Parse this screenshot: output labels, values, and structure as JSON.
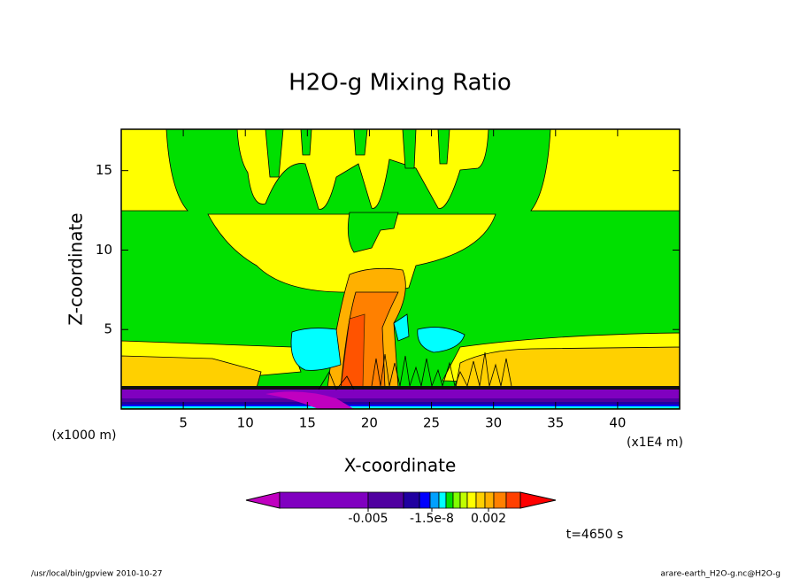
{
  "chart_data": {
    "type": "contour",
    "title": "H2O-g Mixing Ratio",
    "x_label": "X-coordinate",
    "y_label": "Z-coordinate",
    "x_unit": "(x1E4 m)",
    "y_unit": "(x1000 m)",
    "xlim": [
      0,
      45
    ],
    "ylim": [
      0,
      17.6
    ],
    "xticks": [
      5,
      10,
      15,
      20,
      25,
      30,
      35,
      40
    ],
    "yticks": [
      5,
      10,
      15
    ],
    "colorbar": {
      "colors": [
        "#c000c0",
        "#8000c0",
        "#5000a0",
        "#2000a0",
        "#0000ff",
        "#00a0ff",
        "#00ffff",
        "#00e000",
        "#80ff00",
        "#c0ff00",
        "#ffff00",
        "#ffd000",
        "#ffb000",
        "#ff8000",
        "#ff4000",
        "#ff0000"
      ],
      "ticks": [
        -0.005,
        -1.5e-08,
        0.002
      ]
    },
    "annotation": "t=4650 s",
    "footer_left": "/usr/local/bin/gpview  2010-10-27",
    "footer_right": "arare-earth_H2O-g.nc@H2O-g"
  }
}
